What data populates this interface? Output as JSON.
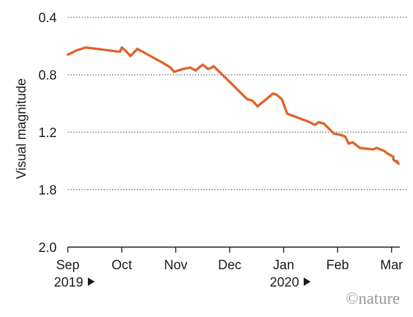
{
  "chart_data": {
    "type": "line",
    "title": "",
    "xlabel": "",
    "ylabel": "Visual magnitude",
    "y_inverted": true,
    "ylim": [
      0.4,
      2.0
    ],
    "y_ticks": [
      "0.4",
      "0.8",
      "1.2",
      "1.8",
      "2.0"
    ],
    "grid": "horizontal dotted",
    "months": [
      "Sep",
      "Oct",
      "Nov",
      "Dec",
      "Jan",
      "Feb",
      "Mar"
    ],
    "year_labels": [
      {
        "month_index": 0,
        "text": "2019"
      },
      {
        "month_index": 4,
        "text": "2020"
      }
    ],
    "line_color": "#e0632a",
    "series": [
      {
        "x": [
          "2019-09-01",
          "2019-09-06",
          "2019-09-11",
          "2019-09-30",
          "2019-10-01",
          "2019-10-03",
          "2019-10-06",
          "2019-10-10",
          "2019-10-25",
          "2019-10-29",
          "2019-10-31",
          "2019-11-05",
          "2019-11-09",
          "2019-11-12",
          "2019-11-16",
          "2019-11-19",
          "2019-11-21",
          "2019-11-22",
          "2019-11-27",
          "2019-12-11",
          "2019-12-14",
          "2019-12-17",
          "2019-12-26",
          "2019-12-28",
          "2019-12-30",
          "2019-12-31",
          "2020-01-03",
          "2020-01-05",
          "2020-01-16",
          "2020-01-19",
          "2020-01-21",
          "2020-01-24",
          "2020-01-30",
          "2020-02-03",
          "2020-02-05",
          "2020-02-07",
          "2020-02-09",
          "2020-02-13",
          "2020-02-20",
          "2020-02-22",
          "2020-02-26",
          "2020-02-28",
          "2020-03-02",
          "2020-03-02",
          "2020-03-04",
          "2020-03-04",
          "2020-03-05"
        ],
        "y": [
          0.66,
          0.63,
          0.61,
          0.64,
          0.61,
          0.63,
          0.67,
          0.62,
          0.72,
          0.75,
          0.78,
          0.76,
          0.75,
          0.77,
          0.73,
          0.76,
          0.75,
          0.74,
          0.8,
          0.97,
          0.98,
          1.02,
          0.93,
          0.94,
          0.96,
          0.97,
          1.07,
          1.08,
          1.13,
          1.15,
          1.13,
          1.14,
          1.21,
          1.22,
          1.23,
          1.28,
          1.27,
          1.31,
          1.32,
          1.31,
          1.33,
          1.35,
          1.37,
          1.39,
          1.41,
          1.4,
          1.42
        ]
      }
    ]
  },
  "attribution": {
    "prefix": "©",
    "name": "nature"
  }
}
